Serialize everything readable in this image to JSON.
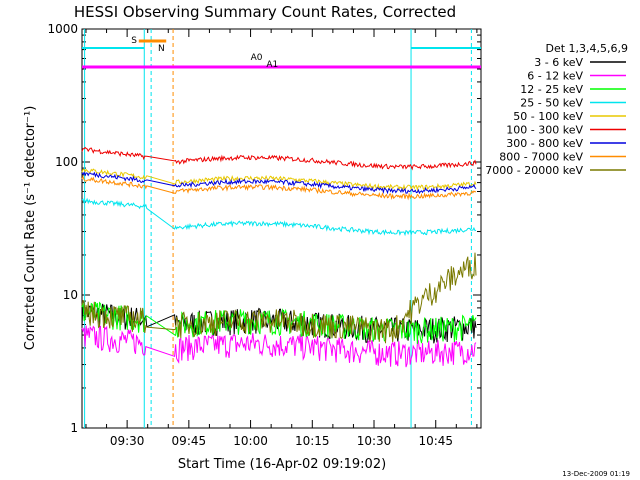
{
  "chart_data": {
    "type": "line",
    "title": "HESSI Observing Summary Count Rates, Corrected",
    "xlabel": "Start Time (16-Apr-02 09:19:02)",
    "ylabel": "Corrected Count Rate (s⁻¹ detector⁻¹)",
    "footer": "13-Dec-2009 01:19",
    "yscale": "log",
    "ylim": [
      1,
      1000
    ],
    "xlim": [
      "09:19:02",
      "10:56:00"
    ],
    "x_ticks": [
      "09:30",
      "09:45",
      "10:00",
      "10:15",
      "10:30",
      "10:45"
    ],
    "y_ticks": [
      "1",
      "10",
      "100",
      "1000"
    ],
    "legend_title": "Det 1,3,4,5,6,9",
    "legend_position": "right",
    "flags": [
      {
        "label": "S",
        "color": "#ff8c00"
      },
      {
        "label": "N",
        "color": "#00e5ee"
      },
      {
        "label": "A0",
        "color": "#ff00ff"
      },
      {
        "label": "A1",
        "color": "#ff00ff"
      }
    ],
    "series": [
      {
        "name": "3 - 6 keV",
        "color": "#000000"
      },
      {
        "name": "6 - 12 keV",
        "color": "#ff00ff"
      },
      {
        "name": "12 - 25 keV",
        "color": "#00ff00"
      },
      {
        "name": "25 - 50 keV",
        "color": "#00e5ee"
      },
      {
        "name": "50 - 100 keV",
        "color": "#e8c800"
      },
      {
        "name": "100 - 300 keV",
        "color": "#ee0000"
      },
      {
        "name": "300 - 800 keV",
        "color": "#0000dd"
      },
      {
        "name": "800 - 7000 keV",
        "color": "#ff8c00"
      },
      {
        "name": "7000 - 20000 keV",
        "color": "#7a7a00"
      }
    ]
  }
}
